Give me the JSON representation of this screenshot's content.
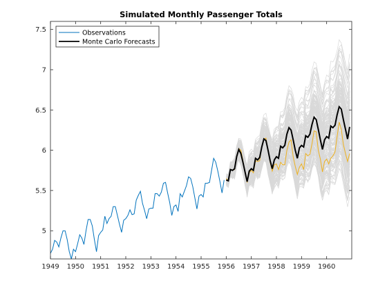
{
  "chart_data": {
    "type": "line",
    "title": "Simulated Monthly Passenger Totals",
    "xlabel": "",
    "ylabel": "",
    "xlim": [
      1949,
      1961
    ],
    "ylim": [
      4.65,
      7.6
    ],
    "x_ticks": [
      1949,
      1950,
      1951,
      1952,
      1953,
      1954,
      1955,
      1956,
      1957,
      1958,
      1959,
      1960
    ],
    "y_ticks": [
      5,
      5.5,
      6,
      6.5,
      7,
      7.5
    ],
    "grid": false,
    "legend_position": "top-left",
    "colors": {
      "observations": "#0072bd",
      "forecast": "#000000",
      "actual": "#edb120",
      "simulation": "#d9d9d9"
    },
    "series": [
      {
        "name": "Observations",
        "x_start": 1949.0,
        "x_step": 0.08333333,
        "values": [
          4.72,
          4.77,
          4.88,
          4.86,
          4.8,
          4.91,
          5.0,
          5.0,
          4.89,
          4.74,
          4.61,
          4.77,
          4.74,
          4.84,
          4.95,
          4.91,
          4.83,
          5.0,
          5.14,
          5.14,
          5.06,
          4.89,
          4.74,
          4.94,
          4.98,
          5.01,
          5.18,
          5.09,
          5.15,
          5.18,
          5.3,
          5.3,
          5.19,
          5.08,
          4.98,
          5.13,
          5.15,
          5.19,
          5.26,
          5.2,
          5.21,
          5.38,
          5.44,
          5.49,
          5.34,
          5.25,
          5.15,
          5.27,
          5.28,
          5.28,
          5.46,
          5.46,
          5.43,
          5.48,
          5.59,
          5.6,
          5.47,
          5.35,
          5.19,
          5.3,
          5.32,
          5.24,
          5.46,
          5.42,
          5.49,
          5.56,
          5.67,
          5.65,
          5.55,
          5.41,
          5.27,
          5.43,
          5.45,
          5.42,
          5.59,
          5.59,
          5.6,
          5.75,
          5.9,
          5.85,
          5.74,
          5.61,
          5.47,
          5.63
        ]
      },
      {
        "name": "Monte Carlo Forecasts",
        "x_start": 1956.0,
        "x_step": 0.08333333,
        "values": [
          5.63,
          5.62,
          5.76,
          5.75,
          5.77,
          5.92,
          6.01,
          5.96,
          5.85,
          5.73,
          5.61,
          5.74,
          5.77,
          5.75,
          5.9,
          5.88,
          5.91,
          6.04,
          6.14,
          6.12,
          6.0,
          5.87,
          5.77,
          5.88,
          5.92,
          5.9,
          6.05,
          6.03,
          6.06,
          6.2,
          6.28,
          6.25,
          6.13,
          6.0,
          5.9,
          6.03,
          6.06,
          6.04,
          6.18,
          6.16,
          6.2,
          6.32,
          6.41,
          6.38,
          6.26,
          6.13,
          6.01,
          6.13,
          6.17,
          6.15,
          6.3,
          6.28,
          6.31,
          6.44,
          6.54,
          6.51,
          6.38,
          6.26,
          6.14,
          6.29
        ]
      },
      {
        "name": "",
        "x_start": 1956.0,
        "x_step": 0.08333333,
        "values": [
          5.65,
          5.62,
          5.76,
          5.75,
          5.76,
          5.92,
          6.02,
          6.0,
          5.87,
          5.72,
          5.6,
          5.72,
          5.75,
          5.72,
          5.87,
          5.86,
          5.87,
          6.05,
          6.14,
          6.15,
          6.0,
          5.85,
          5.74,
          5.82,
          5.83,
          5.76,
          5.85,
          5.82,
          5.82,
          6.0,
          6.1,
          6.13,
          5.92,
          5.8,
          5.7,
          5.79,
          5.83,
          5.76,
          5.96,
          5.93,
          5.95,
          6.08,
          6.24,
          6.23,
          6.0,
          5.89,
          5.73,
          5.86,
          5.89,
          5.83,
          5.9,
          5.93,
          5.98,
          6.17,
          6.35,
          6.26,
          6.07,
          5.96,
          5.86,
          5.96
        ]
      }
    ],
    "simulation_band": {
      "x_start": 1956.0,
      "x_step": 0.08333333,
      "center_values": [
        5.63,
        5.62,
        5.76,
        5.75,
        5.77,
        5.92,
        6.01,
        5.96,
        5.85,
        5.73,
        5.61,
        5.74,
        5.77,
        5.75,
        5.9,
        5.88,
        5.91,
        6.04,
        6.14,
        6.12,
        6.0,
        5.87,
        5.77,
        5.88,
        5.92,
        5.9,
        6.05,
        6.03,
        6.06,
        6.2,
        6.28,
        6.25,
        6.13,
        6.0,
        5.9,
        6.03,
        6.06,
        6.04,
        6.18,
        6.16,
        6.2,
        6.32,
        6.41,
        6.38,
        6.26,
        6.13,
        6.01,
        6.13,
        6.17,
        6.15,
        6.3,
        6.28,
        6.31,
        6.44,
        6.54,
        6.51,
        6.38,
        6.26,
        6.14,
        6.29
      ],
      "spread_start": 0.06,
      "spread_end": 0.78,
      "min_value": 5.0,
      "max_value": 7.6
    }
  }
}
